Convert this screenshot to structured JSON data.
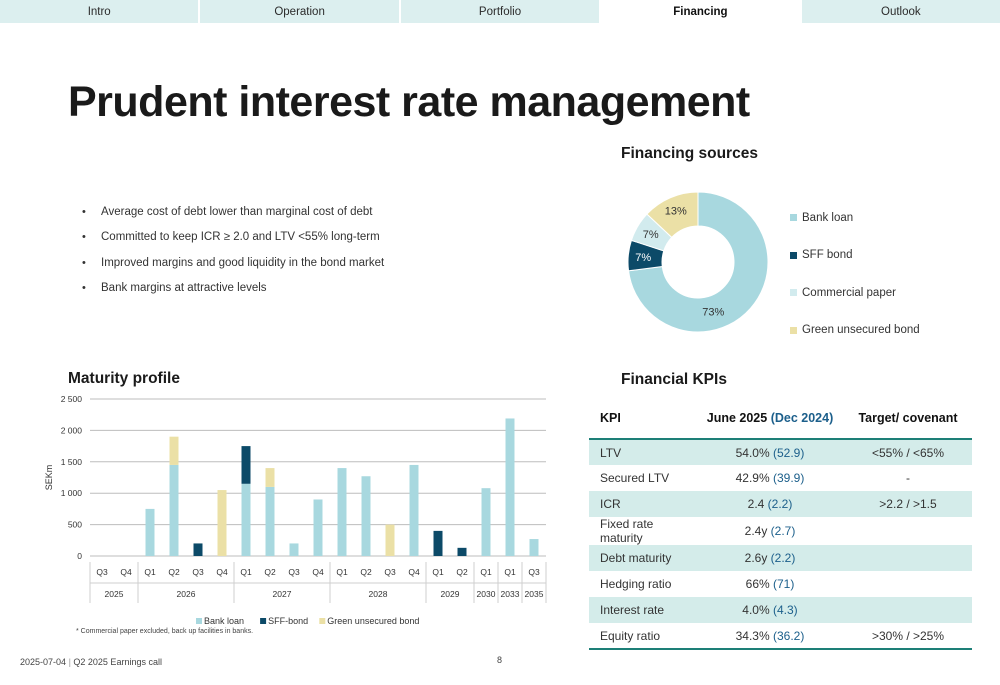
{
  "nav": {
    "tabs": [
      "Intro",
      "Operation",
      "Portfolio",
      "Financing",
      "Outlook"
    ],
    "active": "Financing"
  },
  "title": "Prudent interest rate management",
  "bullets": [
    "Average cost of debt lower than marginal cost of debt",
    "Committed to keep ICR ≥ 2.0 and LTV <55% long-term",
    "Improved margins and good liquidity in the bond market",
    "Bank margins at attractive levels"
  ],
  "bullet_glyph": "•",
  "sections": {
    "financing_sources": "Financing sources",
    "maturity_profile": "Maturity profile",
    "financial_kpis": "Financial KPIs"
  },
  "chart_data": [
    {
      "type": "pie",
      "title": "Financing sources",
      "donut": true,
      "slices": [
        {
          "label": "Bank loan",
          "value": 73,
          "display": "73%",
          "color": "#a8d8df"
        },
        {
          "label": "SFF bond",
          "value": 7,
          "display": "7%",
          "color": "#0c4a68"
        },
        {
          "label": "Commercial paper",
          "value": 7,
          "display": "7%",
          "color": "#d2ebee"
        },
        {
          "label": "Green unsecured bond",
          "value": 13,
          "display": "13%",
          "color": "#ebe0a6"
        }
      ],
      "legend_position": "right"
    },
    {
      "type": "bar",
      "stacked": true,
      "title": "Maturity profile",
      "ylabel": "SEKm",
      "ylim": [
        0,
        2500
      ],
      "yticks": [
        0,
        500,
        1000,
        1500,
        2000,
        2500
      ],
      "ytick_labels": [
        "0",
        "500",
        "1 000",
        "1 500",
        "2 000",
        "2 500"
      ],
      "grid": true,
      "categories": [
        "Q3",
        "Q4",
        "Q1",
        "Q2",
        "Q3",
        "Q4",
        "Q1",
        "Q2",
        "Q3",
        "Q4",
        "Q1",
        "Q2",
        "Q3",
        "Q4",
        "Q1",
        "Q2",
        "Q1",
        "Q1",
        "Q3"
      ],
      "groups": [
        {
          "label": "2025",
          "count": 2
        },
        {
          "label": "2026",
          "count": 4
        },
        {
          "label": "2027",
          "count": 4
        },
        {
          "label": "2028",
          "count": 4
        },
        {
          "label": "2029",
          "count": 2
        },
        {
          "label": "2030",
          "count": 1
        },
        {
          "label": "2033",
          "count": 1
        },
        {
          "label": "2035",
          "count": 1
        }
      ],
      "series": [
        {
          "name": "Bank loan",
          "color": "#a8d8df",
          "values": [
            0,
            0,
            750,
            1450,
            0,
            0,
            1150,
            1100,
            200,
            900,
            1400,
            1270,
            0,
            1450,
            0,
            0,
            1080,
            2190,
            270
          ]
        },
        {
          "name": "SFF-bond",
          "color": "#0c4a68",
          "values": [
            0,
            0,
            0,
            0,
            200,
            0,
            600,
            0,
            0,
            0,
            0,
            0,
            0,
            0,
            400,
            130,
            0,
            0,
            0
          ]
        },
        {
          "name": "Green unsecured bond",
          "color": "#ebe0a6",
          "values": [
            0,
            0,
            0,
            450,
            0,
            1050,
            0,
            300,
            0,
            0,
            0,
            0,
            500,
            0,
            0,
            0,
            0,
            0,
            0
          ]
        }
      ],
      "legend_position": "bottom"
    }
  ],
  "footnote": "* Commercial paper excluded, back up facilities in banks.",
  "kpi_table": {
    "headers": {
      "kpi": "KPI",
      "current": "June 2025",
      "previous": "(Dec 2024)",
      "target": "Target/ covenant"
    },
    "rows": [
      {
        "kpi": "LTV",
        "value": "54.0%",
        "prev": "(52.9)",
        "target": "<55% / <65%"
      },
      {
        "kpi": "Secured LTV",
        "value": "42.9%",
        "prev": "(39.9)",
        "target": "-"
      },
      {
        "kpi": "ICR",
        "value": "2.4",
        "prev": "(2.2)",
        "target": ">2.2 / >1.5"
      },
      {
        "kpi": "Fixed rate maturity",
        "value": "2.4y",
        "prev": "(2.7)",
        "target": ""
      },
      {
        "kpi": "Debt maturity",
        "value": "2.6y",
        "prev": "(2.2)",
        "target": ""
      },
      {
        "kpi": "Hedging ratio",
        "value": "66%",
        "prev": "(71)",
        "target": ""
      },
      {
        "kpi": "Interest rate",
        "value": "4.0%",
        "prev": "(4.3)",
        "target": ""
      },
      {
        "kpi": "Equity ratio",
        "value": "34.3%",
        "prev": "(36.2)",
        "target": ">30% / >25%"
      }
    ]
  },
  "footer": {
    "date": "2025-07-04",
    "event": "Q2 2025 Earnings call",
    "page": "8"
  }
}
